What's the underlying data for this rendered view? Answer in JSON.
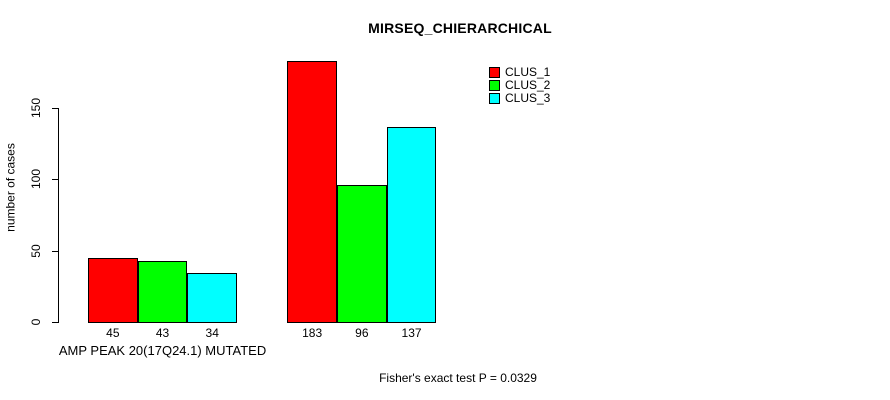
{
  "chart_data": {
    "type": "bar",
    "title": "MIRSEQ_CHIERARCHICAL",
    "ylabel": "number of cases",
    "xlabel": "AMP PEAK 20(17Q24.1) MUTATED",
    "annotation": "Fisher's exact test P = 0.0329",
    "groups": [
      {
        "label": "AMP PEAK 20(17Q24.1) MUTATED"
      },
      {
        "label": ""
      }
    ],
    "series": [
      {
        "name": "CLUS_1",
        "color": "#FF0000",
        "values": [
          45,
          183
        ]
      },
      {
        "name": "CLUS_2",
        "color": "#00FF00",
        "values": [
          43,
          96
        ]
      },
      {
        "name": "CLUS_3",
        "color": "#00FFFF",
        "values": [
          34,
          137
        ]
      }
    ],
    "yticks": [
      0,
      50,
      100,
      150
    ],
    "ylim": [
      0,
      185
    ],
    "grid": false,
    "bar_value_labels_shown": true,
    "legend_position": "top-right",
    "bar_border_color": "#000000",
    "text_color": "#000000",
    "background_color": "#FFFFFF"
  }
}
